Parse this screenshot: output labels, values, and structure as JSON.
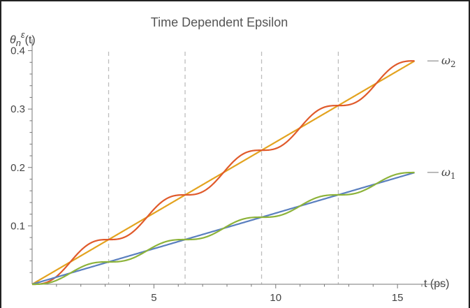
{
  "chart_data": {
    "type": "line",
    "title": "Time Dependent Epsilon",
    "xlabel": "t (ps)",
    "ylabel": {
      "main": "θ",
      "sub": "n",
      "sup": "ε",
      "tail": "(t)"
    },
    "xlim": [
      0,
      16.4
    ],
    "ylim": [
      0,
      0.415
    ],
    "xticks": [
      5,
      10,
      15
    ],
    "yticks": [
      0.1,
      0.2,
      0.3,
      0.4
    ],
    "ytick_labels": [
      "0.1",
      "0.2",
      "0.3",
      "0.4"
    ],
    "xtick_labels": [
      "5",
      "10",
      "15"
    ],
    "dashed_vlines": [
      3.14,
      6.28,
      9.42,
      12.57
    ],
    "series": [
      {
        "key": "w2_linear",
        "color": "#E3A31F",
        "kind": "linear",
        "slope": 0.02435,
        "xmax": 15.7
      },
      {
        "key": "w2_oscillating",
        "color": "#E05A2B",
        "kind": "staircase",
        "slope": 0.02435,
        "period": 3.1416,
        "xmax": 15.7
      },
      {
        "key": "w1_linear",
        "color": "#5A7FBF",
        "kind": "linear",
        "slope": 0.01218,
        "xmax": 15.7
      },
      {
        "key": "w1_oscillating",
        "color": "#8DB33A",
        "kind": "staircase",
        "slope": 0.01218,
        "period": 3.1416,
        "xmax": 15.7
      }
    ],
    "curve_labels": [
      {
        "text": "ω",
        "sub": "2",
        "y": 0.3825
      },
      {
        "text": "ω",
        "sub": "1",
        "y": 0.1915
      }
    ]
  }
}
